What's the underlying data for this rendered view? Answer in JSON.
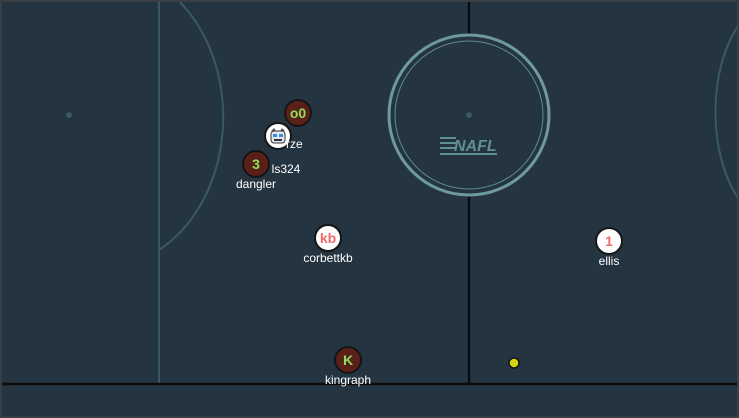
{
  "colors": {
    "background": "#243440",
    "lines": "#3a5a60",
    "center_line": "#0c0c0c",
    "circle": "#6e9a9c",
    "red_team_fill": "#5a1f17",
    "blue_team_fill": "#ffffff",
    "red_team_number": "#8ee05a",
    "blue_team_number": "#f06a6a",
    "ball": "#d4d410"
  },
  "logo": {
    "text": "NAFL"
  },
  "players": [
    {
      "id": "o0",
      "team": "red",
      "number": "o0",
      "name": ""
    },
    {
      "id": "rze",
      "team": "blue",
      "avatar": "robot-face-icon",
      "name": "rze"
    },
    {
      "id": "ls324",
      "team": "red",
      "number": "",
      "name": "ls324"
    },
    {
      "id": "dangler",
      "team": "red",
      "number": "3",
      "name": "dangler"
    },
    {
      "id": "corbettkb",
      "team": "blue",
      "number": "kb",
      "name": "corbettkb"
    },
    {
      "id": "ellis",
      "team": "blue",
      "number": "1",
      "name": "ellis"
    },
    {
      "id": "kingraph",
      "team": "red",
      "number": "K",
      "name": "kingraph"
    }
  ],
  "ball": {
    "visible": true
  }
}
